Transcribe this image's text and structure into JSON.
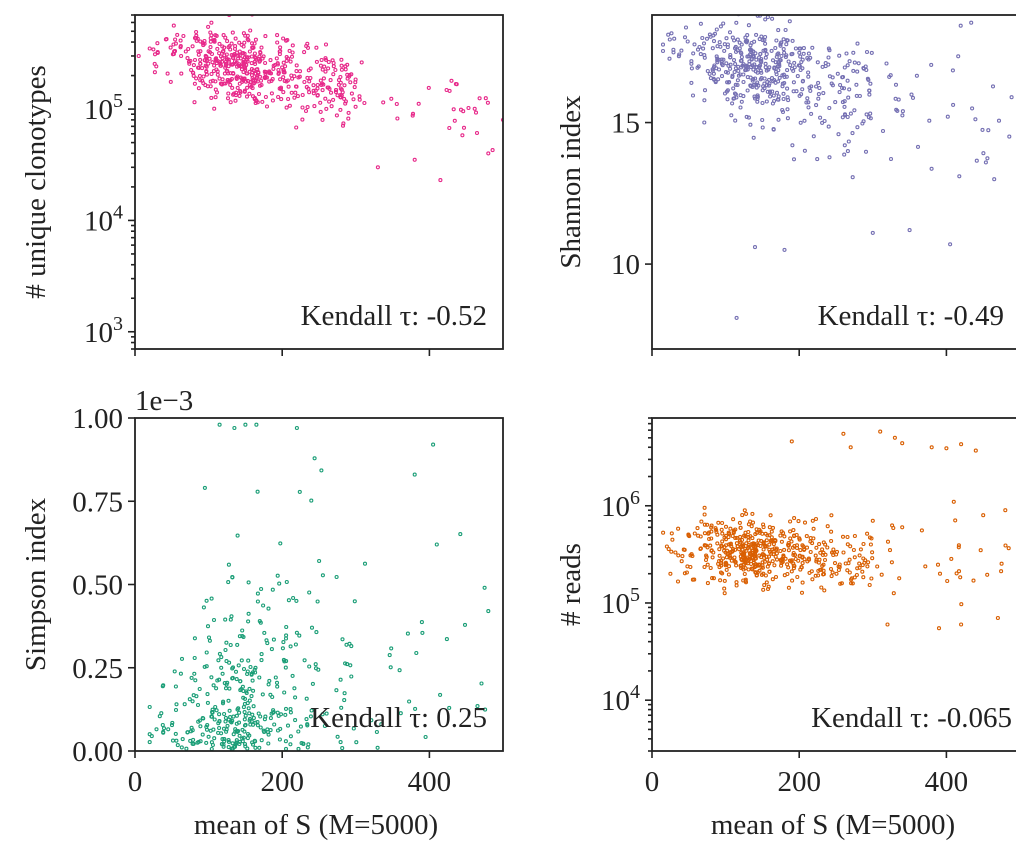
{
  "chart_data": [
    {
      "type": "scatter",
      "ylabel": "# unique clonotypes",
      "xlabel": "",
      "yscale": "log",
      "xlim": [
        0,
        500
      ],
      "ylim": [
        700,
        700000
      ],
      "x_ticks": [
        0,
        200,
        400
      ],
      "y_ticks": [
        {
          "value": 1000,
          "base": "10",
          "exp": "3"
        },
        {
          "value": 10000,
          "base": "10",
          "exp": "4"
        },
        {
          "value": 100000,
          "base": "10",
          "exp": "5"
        }
      ],
      "annotation": "Kendall τ: -0.52",
      "color": "#e7298a",
      "trend": {
        "x0": 20,
        "y0": 340000,
        "x1": 490,
        "y1": 90000,
        "spread": 0.16,
        "n": 560,
        "seed": 11
      },
      "points": [
        [
          5,
          300000
        ],
        [
          330,
          30000
        ],
        [
          415,
          23000
        ],
        [
          380,
          35000
        ],
        [
          480,
          40000
        ],
        [
          500,
          80000
        ]
      ]
    },
    {
      "type": "scatter",
      "ylabel": "Shannon index",
      "xlabel": "",
      "yscale": "linear",
      "xlim": [
        0,
        500
      ],
      "ylim": [
        7,
        18.8
      ],
      "y_ticks": [
        {
          "value": 10,
          "label": "10"
        },
        {
          "value": 15,
          "label": "15"
        }
      ],
      "x_ticks": [
        0,
        200,
        400
      ],
      "annotation": "Kendall τ: -0.49",
      "color": "#7570b3",
      "trend": {
        "x0": 15,
        "y0": 17.9,
        "x1": 490,
        "y1": 14.3,
        "spread": 1.1,
        "n": 520,
        "seed": 23
      },
      "points": [
        [
          115,
          8.1
        ],
        [
          140,
          10.6
        ],
        [
          180,
          10.5
        ],
        [
          300,
          11.1
        ],
        [
          350,
          11.2
        ],
        [
          405,
          10.7
        ],
        [
          465,
          13.0
        ],
        [
          500,
          13.8
        ]
      ]
    },
    {
      "type": "scatter",
      "ylabel": "Simpson index",
      "xlabel": "mean of S (M=5000)",
      "yscale": "linear",
      "offset_label": "1e−3",
      "xlim": [
        0,
        500
      ],
      "ylim": [
        0,
        1.0
      ],
      "y_ticks": [
        {
          "value": 0,
          "label": "0.00"
        },
        {
          "value": 0.25,
          "label": "0.25"
        },
        {
          "value": 0.5,
          "label": "0.50"
        },
        {
          "value": 0.75,
          "label": "0.75"
        },
        {
          "value": 1.0,
          "label": "1.00"
        }
      ],
      "x_ticks": [
        0,
        200,
        400
      ],
      "x_tick_labels": [
        "0",
        "200",
        "400"
      ],
      "annotation": "Kendall τ: 0.25",
      "color": "#1b9e77",
      "trend": {
        "x0": 20,
        "y0": 0.02,
        "x1": 480,
        "y1": 0.35,
        "spread": 0.22,
        "n": 420,
        "seed": 37
      },
      "points": [
        [
          115,
          0.98
        ],
        [
          135,
          0.97
        ],
        [
          150,
          0.98
        ],
        [
          165,
          0.98
        ],
        [
          220,
          0.97
        ],
        [
          405,
          0.92
        ],
        [
          95,
          0.79
        ],
        [
          380,
          0.83
        ],
        [
          410,
          0.62
        ],
        [
          475,
          0.49
        ],
        [
          480,
          0.42
        ]
      ]
    },
    {
      "type": "scatter",
      "ylabel": "# reads",
      "xlabel": "mean of S (M=5000)",
      "yscale": "log",
      "xlim": [
        0,
        500
      ],
      "ylim": [
        3000,
        8000000
      ],
      "y_ticks": [
        {
          "value": 10000,
          "base": "10",
          "exp": "4"
        },
        {
          "value": 100000,
          "base": "10",
          "exp": "5"
        },
        {
          "value": 1000000,
          "base": "10",
          "exp": "6"
        }
      ],
      "x_ticks": [
        0,
        200,
        400
      ],
      "x_tick_labels": [
        "0",
        "200",
        "400"
      ],
      "annotation": "Kendall τ: -0.065",
      "color": "#d95f02",
      "trend": {
        "x0": 5,
        "y0": 400000,
        "x1": 490,
        "y1": 220000,
        "spread": 0.17,
        "n": 560,
        "seed": 53
      },
      "points": [
        [
          190,
          4600000
        ],
        [
          260,
          5500000
        ],
        [
          310,
          5800000
        ],
        [
          330,
          5000000
        ],
        [
          340,
          4400000
        ],
        [
          270,
          4000000
        ],
        [
          380,
          4000000
        ],
        [
          400,
          3900000
        ],
        [
          420,
          4300000
        ],
        [
          440,
          3700000
        ],
        [
          500,
          1200000
        ],
        [
          480,
          900000
        ],
        [
          300,
          700000
        ],
        [
          340,
          600000
        ],
        [
          410,
          1100000
        ],
        [
          450,
          800000
        ],
        [
          420,
          60000
        ],
        [
          470,
          70000
        ],
        [
          390,
          55000
        ],
        [
          320,
          60000
        ]
      ]
    }
  ]
}
